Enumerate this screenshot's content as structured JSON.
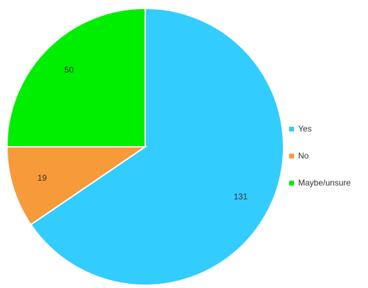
{
  "chart_data": {
    "type": "pie",
    "title": "",
    "categories": [
      "Yes",
      "No",
      "Maybe/unsure"
    ],
    "values": [
      131,
      19,
      50
    ],
    "colors": [
      "#33CCFF",
      "#F79A3A",
      "#00EE00"
    ],
    "start_angle_deg": 0,
    "direction": "clockwise",
    "data_labels": [
      "131",
      "19",
      "50"
    ],
    "legend_position": "right"
  },
  "legend": {
    "items": [
      {
        "label": "Yes",
        "color": "#33CCFF"
      },
      {
        "label": "No",
        "color": "#F79A3A"
      },
      {
        "label": "Maybe/unsure",
        "color": "#00EE00"
      }
    ]
  }
}
